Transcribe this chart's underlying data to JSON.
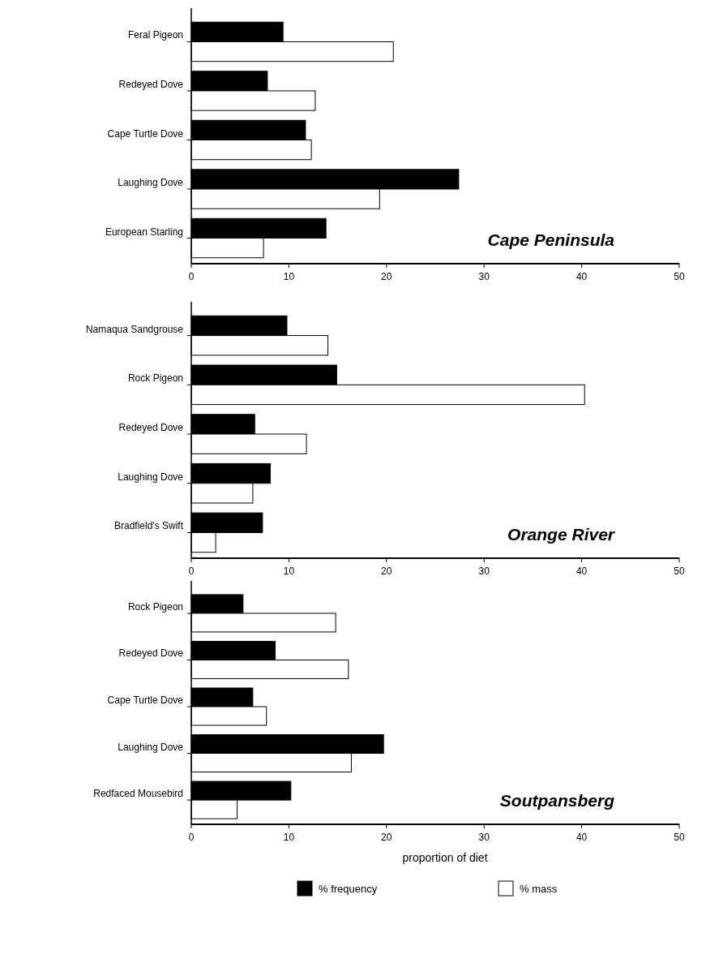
{
  "chart_data": [
    {
      "type": "bar",
      "orientation": "horizontal",
      "categories": [
        "Feral Pigeon",
        "Redeyed Dove",
        "Cape Turtle Dove",
        "Laughing Dove",
        "European Starling"
      ],
      "series": [
        {
          "color": "#000000",
          "values": [
            9.4,
            7.8,
            11.7,
            27.4,
            13.8
          ]
        },
        {
          "color": "#ffffff",
          "values": [
            20.7,
            12.7,
            12.3,
            19.3,
            7.4
          ]
        }
      ],
      "xlim": [
        0,
        50
      ],
      "xticks": [
        0,
        10,
        20,
        30,
        40,
        50
      ],
      "annotations": [
        "Cape Peninsula"
      ],
      "legend": false,
      "grid": false
    },
    {
      "type": "bar",
      "orientation": "horizontal",
      "categories": [
        "Namaqua Sandgrouse",
        "Rock Pigeon",
        "Redeyed Dove",
        "Laughing Dove",
        "Bradfield's Swift"
      ],
      "series": [
        {
          "color": "#000000",
          "values": [
            9.8,
            14.9,
            6.5,
            8.1,
            7.3
          ]
        },
        {
          "color": "#ffffff",
          "values": [
            14.0,
            40.3,
            11.8,
            6.3,
            2.5
          ]
        }
      ],
      "xlim": [
        0,
        50
      ],
      "xticks": [
        0,
        10,
        20,
        30,
        40,
        50
      ],
      "annotations": [
        "Orange River"
      ],
      "legend": false,
      "grid": false
    },
    {
      "type": "bar",
      "orientation": "horizontal",
      "categories": [
        "Rock Pigeon",
        "Redeyed Dove",
        "Cape Turtle Dove",
        "Laughing Dove",
        "Redfaced Mousebird"
      ],
      "series": [
        {
          "name": "% frequency",
          "color": "#000000",
          "values": [
            5.3,
            8.6,
            6.3,
            19.7,
            10.2
          ]
        },
        {
          "name": "% mass",
          "color": "#ffffff",
          "values": [
            14.8,
            16.1,
            7.7,
            16.4,
            4.7
          ]
        }
      ],
      "xlim": [
        0,
        50
      ],
      "xticks": [
        0,
        10,
        20,
        30,
        40,
        50
      ],
      "xlabel": "proportion of diet",
      "annotations": [
        "Soutpansberg"
      ],
      "legend": "bottom",
      "grid": false
    }
  ]
}
